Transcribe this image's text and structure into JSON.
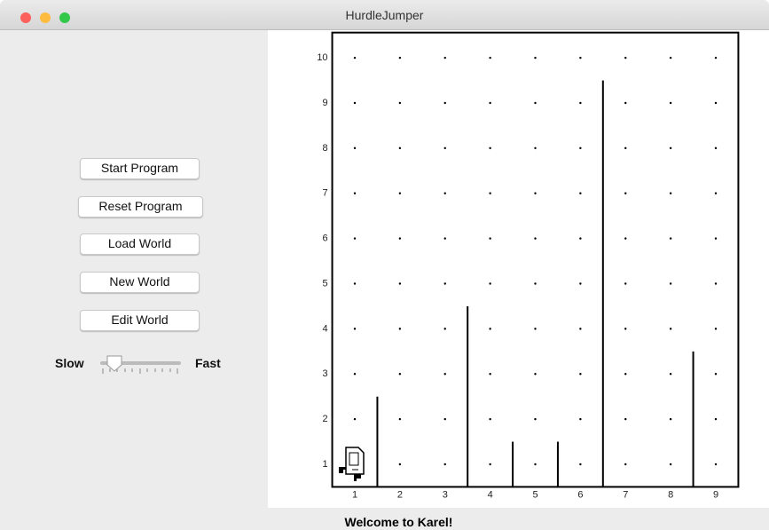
{
  "window": {
    "title": "HurdleJumper"
  },
  "controls": {
    "buttons": [
      "Start Program",
      "Reset Program",
      "Load World",
      "New World",
      "Edit World"
    ],
    "slider": {
      "min_label": "Slow",
      "max_label": "Fast"
    }
  },
  "world": {
    "columns": [
      1,
      2,
      3,
      4,
      5,
      6,
      7,
      8,
      9
    ],
    "rows": [
      1,
      2,
      3,
      4,
      5,
      6,
      7,
      8,
      9,
      10
    ],
    "walls": [
      {
        "after_column": 1,
        "height": 2
      },
      {
        "after_column": 3,
        "height": 4
      },
      {
        "after_column": 4,
        "height": 1
      },
      {
        "after_column": 5,
        "height": 1
      },
      {
        "after_column": 6,
        "height": 9
      },
      {
        "after_column": 8,
        "height": 3
      }
    ],
    "karel": {
      "column": 1,
      "row": 1
    }
  },
  "status": "Welcome to Karel!"
}
